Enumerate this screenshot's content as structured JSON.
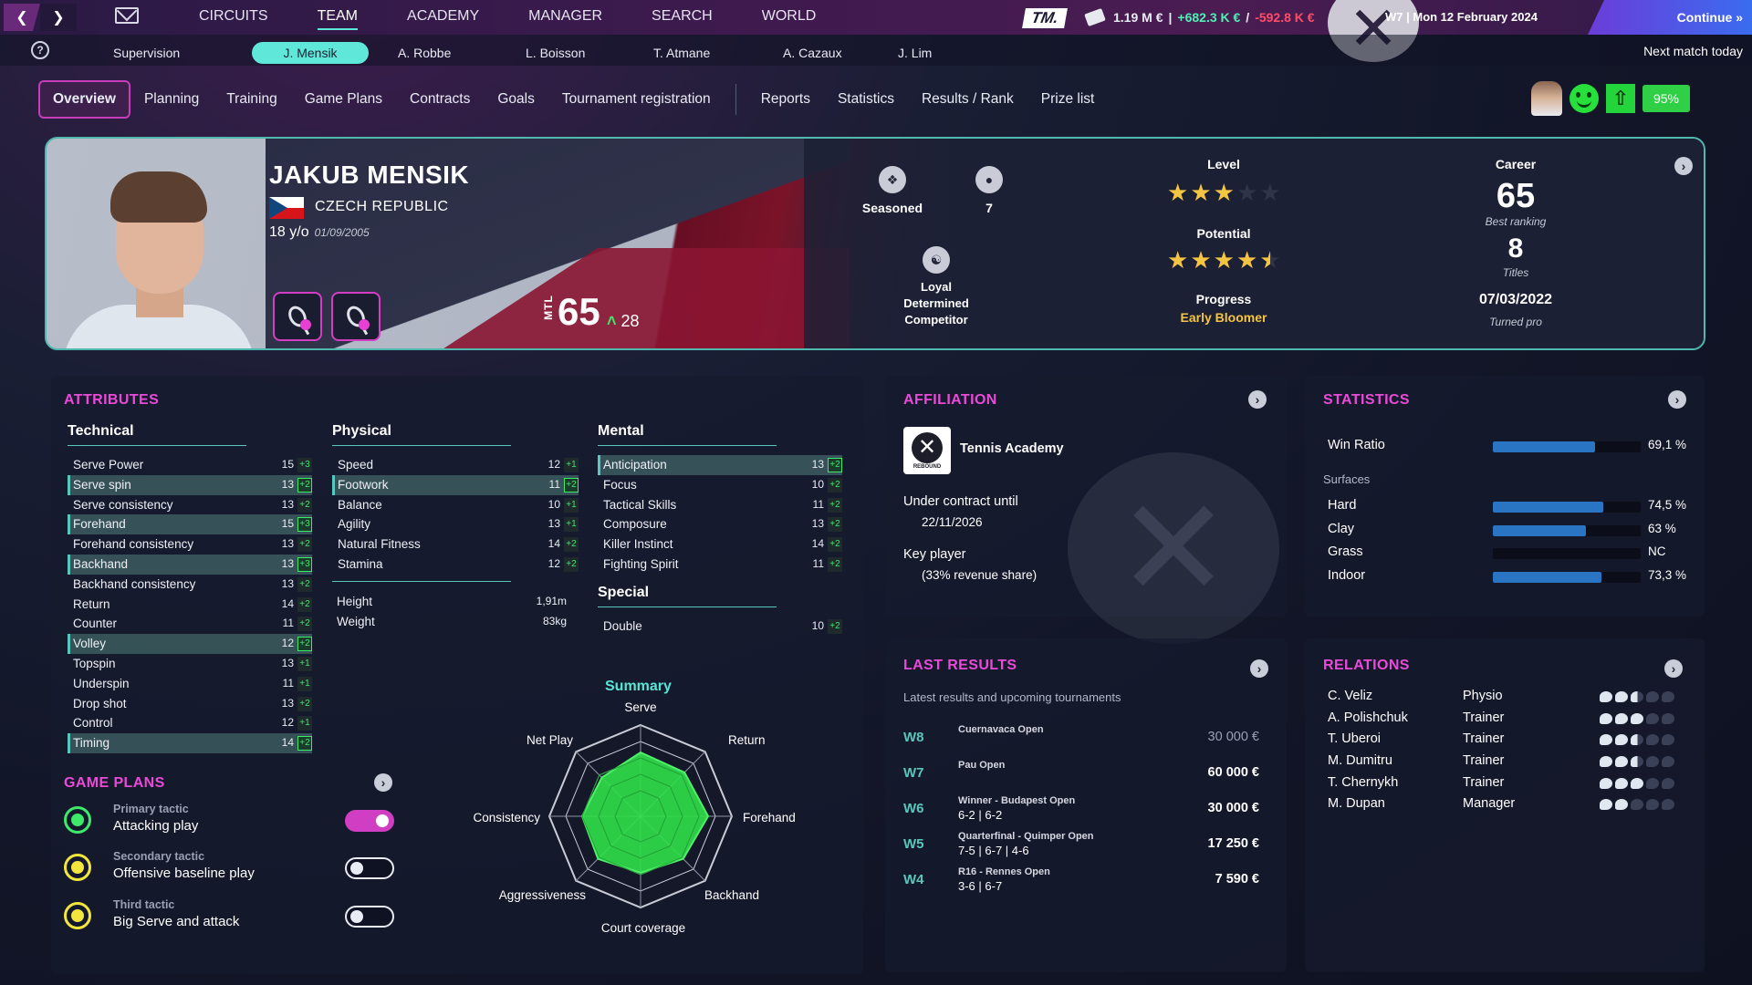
{
  "topnav": {
    "items": [
      "CIRCUITS",
      "TEAM",
      "ACADEMY",
      "MANAGER",
      "SEARCH",
      "WORLD"
    ],
    "active": "TEAM"
  },
  "finance": {
    "balance": "1.19 M €",
    "income": "+682.3 K €",
    "expense": "-592.8 K €",
    "sep1": "|",
    "sep2": "/"
  },
  "logo": {
    "tm": "TM."
  },
  "date": "W7 | Mon 12 February 2024",
  "continue_label": "Continue »",
  "help": "?",
  "subnav": {
    "items": [
      "Supervision",
      "J. Mensik",
      "A. Robbe",
      "L. Boisson",
      "T. Atmane",
      "A. Cazaux",
      "J. Lim"
    ],
    "active": "J. Mensik"
  },
  "next_match": "Next match today",
  "tabs": [
    "Overview",
    "Planning",
    "Training",
    "Game Plans",
    "Contracts",
    "Goals",
    "Tournament registration"
  ],
  "tabs2": [
    "Reports",
    "Statistics",
    "Results / Rank",
    "Prize list"
  ],
  "status": {
    "fitness_pct": "95%",
    "pct_value": 95
  },
  "player": {
    "name": "JAKUB MENSIK",
    "country": "CZECH REPUBLIC",
    "age": "18 y/o",
    "dob": "01/09/2005",
    "mtl_label": "MTL",
    "mtl": "65",
    "mtl_gain": "28",
    "experience": "Seasoned",
    "count_value": "7",
    "traits": [
      "Loyal",
      "Determined",
      "Competitor"
    ],
    "level_label": "Level",
    "level_stars": 3,
    "potential_label": "Potential",
    "potential_stars": 4.5,
    "progress_label": "Progress",
    "progress": "Early Bloomer",
    "career_label": "Career",
    "best_ranking": "65",
    "best_ranking_label": "Best ranking",
    "titles": "8",
    "titles_label": "Titles",
    "turned_pro": "07/03/2022",
    "turned_pro_label": "Turned pro"
  },
  "attributes": {
    "title": "ATTRIBUTES",
    "technical_title": "Technical",
    "technical": [
      {
        "name": "Serve Power",
        "value": 15,
        "delta": "+3",
        "hl": false
      },
      {
        "name": "Serve spin",
        "value": 13,
        "delta": "+2",
        "hl": true
      },
      {
        "name": "Serve consistency",
        "value": 13,
        "delta": "+2",
        "hl": false
      },
      {
        "name": "Forehand",
        "value": 15,
        "delta": "+3",
        "hl": true
      },
      {
        "name": "Forehand consistency",
        "value": 13,
        "delta": "+2",
        "hl": false
      },
      {
        "name": "Backhand",
        "value": 13,
        "delta": "+3",
        "hl": true
      },
      {
        "name": "Backhand consistency",
        "value": 13,
        "delta": "+2",
        "hl": false
      },
      {
        "name": "Return",
        "value": 14,
        "delta": "+2",
        "hl": false
      },
      {
        "name": "Counter",
        "value": 11,
        "delta": "+2",
        "hl": false
      },
      {
        "name": "Volley",
        "value": 12,
        "delta": "+2",
        "hl": true
      },
      {
        "name": "Topspin",
        "value": 13,
        "delta": "+1",
        "hl": false
      },
      {
        "name": "Underspin",
        "value": 11,
        "delta": "+1",
        "hl": false
      },
      {
        "name": "Drop shot",
        "value": 13,
        "delta": "+2",
        "hl": false
      },
      {
        "name": "Control",
        "value": 12,
        "delta": "+1",
        "hl": false
      },
      {
        "name": "Timing",
        "value": 14,
        "delta": "+2",
        "hl": true
      }
    ],
    "physical_title": "Physical",
    "physical": [
      {
        "name": "Speed",
        "value": 12,
        "delta": "+1",
        "hl": false
      },
      {
        "name": "Footwork",
        "value": 11,
        "delta": "+2",
        "hl": true
      },
      {
        "name": "Balance",
        "value": 10,
        "delta": "+1",
        "hl": false
      },
      {
        "name": "Agility",
        "value": 13,
        "delta": "+1",
        "hl": false
      },
      {
        "name": "Natural Fitness",
        "value": 14,
        "delta": "+2",
        "hl": false
      },
      {
        "name": "Stamina",
        "value": 12,
        "delta": "+2",
        "hl": false
      }
    ],
    "height_label": "Height",
    "height": "1,91m",
    "weight_label": "Weight",
    "weight": "83kg",
    "mental_title": "Mental",
    "mental": [
      {
        "name": "Anticipation",
        "value": 13,
        "delta": "+2",
        "hl": true
      },
      {
        "name": "Focus",
        "value": 10,
        "delta": "+2",
        "hl": false
      },
      {
        "name": "Tactical Skills",
        "value": 11,
        "delta": "+2",
        "hl": false
      },
      {
        "name": "Composure",
        "value": 13,
        "delta": "+2",
        "hl": false
      },
      {
        "name": "Killer Instinct",
        "value": 14,
        "delta": "+2",
        "hl": false
      },
      {
        "name": "Fighting Spirit",
        "value": 11,
        "delta": "+2",
        "hl": false
      }
    ],
    "special_title": "Special",
    "special": [
      {
        "name": "Double",
        "value": 10,
        "delta": "+2",
        "hl": false
      }
    ]
  },
  "summary": {
    "title": "Summary",
    "axes": [
      "Serve",
      "Return",
      "Forehand",
      "Backhand",
      "Court coverage",
      "Aggressiveness",
      "Consistency",
      "Net Play"
    ],
    "values": [
      0.7,
      0.68,
      0.74,
      0.66,
      0.62,
      0.66,
      0.64,
      0.6
    ]
  },
  "game_plans": {
    "title": "GAME PLANS",
    "items": [
      {
        "kind": "Primary tactic",
        "name": "Attacking play",
        "on": true,
        "color": "green"
      },
      {
        "kind": "Secondary tactic",
        "name": "Offensive baseline play",
        "on": false,
        "color": "yellow"
      },
      {
        "kind": "Third tactic",
        "name": "Big Serve and attack",
        "on": false,
        "color": "yellow"
      }
    ]
  },
  "affiliation": {
    "title": "AFFILIATION",
    "academy": "Tennis Academy",
    "logo_text": "REBOUND",
    "contract_label": "Under contract until",
    "contract_until": "22/11/2026",
    "key_label": "Key player",
    "key_detail": "(33% revenue share)"
  },
  "statistics": {
    "title": "STATISTICS",
    "win_label": "Win Ratio",
    "win_value": "69,1 %",
    "win_pct": 69.1,
    "surfaces_label": "Surfaces",
    "surfaces": [
      {
        "name": "Hard",
        "value": "74,5 %",
        "pct": 74.5
      },
      {
        "name": "Clay",
        "value": "63 %",
        "pct": 63
      },
      {
        "name": "Grass",
        "value": "NC",
        "pct": 0
      },
      {
        "name": "Indoor",
        "value": "73,3 %",
        "pct": 73.3
      }
    ]
  },
  "last_results": {
    "title": "LAST RESULTS",
    "subtitle": "Latest results and upcoming tournaments",
    "rows": [
      {
        "week": "W8",
        "event": "Cuernavaca Open",
        "score": "",
        "prize": "30 000 €",
        "muted": true
      },
      {
        "week": "W7",
        "event": "Pau Open",
        "score": "",
        "prize": "60 000 €",
        "muted": false
      },
      {
        "week": "W6",
        "event": "Winner - Budapest Open",
        "score": "6-2 | 6-2",
        "prize": "30 000 €",
        "muted": false
      },
      {
        "week": "W5",
        "event": "Quarterfinal - Quimper Open",
        "score": "7-5 | 6-7 | 4-6",
        "prize": "17 250 €",
        "muted": false
      },
      {
        "week": "W4",
        "event": "R16 - Rennes Open",
        "score": "3-6 | 6-7",
        "prize": "7 590 €",
        "muted": false
      }
    ]
  },
  "relations": {
    "title": "RELATIONS",
    "rows": [
      {
        "name": "C. Veliz",
        "role": "Physio",
        "level": 2.5
      },
      {
        "name": "A. Polishchuk",
        "role": "Trainer",
        "level": 3
      },
      {
        "name": "T. Uberoi",
        "role": "Trainer",
        "level": 2.5
      },
      {
        "name": "M. Dumitru",
        "role": "Trainer",
        "level": 2.5
      },
      {
        "name": "T. Chernykh",
        "role": "Trainer",
        "level": 3
      },
      {
        "name": "M. Dupan",
        "role": "Manager",
        "level": 2
      }
    ]
  },
  "colors": {
    "accent": "#e94ad8",
    "teal": "#58c7bd",
    "green": "#3ee86a",
    "bar": "#2a74c4"
  }
}
